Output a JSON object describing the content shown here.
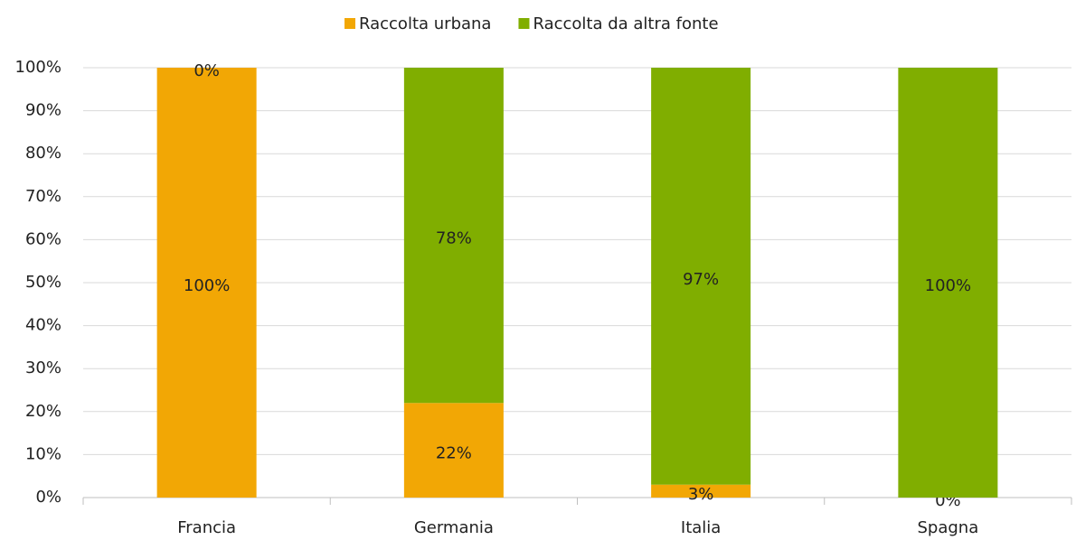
{
  "chart_data": {
    "type": "stacked_bar",
    "categories": [
      "Francia",
      "Germania",
      "Italia",
      "Spagna"
    ],
    "series": [
      {
        "name": "Raccolta urbana",
        "color": "#f2a705",
        "values": [
          100,
          22,
          3,
          0
        ],
        "value_labels": [
          "100%",
          "22%",
          "3%",
          "0%"
        ]
      },
      {
        "name": "Raccolta da altra fonte",
        "color": "#80ae00",
        "values": [
          0,
          78,
          97,
          100
        ],
        "value_labels": [
          "0%",
          "78%",
          "97%",
          "100%"
        ]
      }
    ],
    "ylim": [
      0,
      100
    ],
    "yticks": [
      {
        "value": 0,
        "label": "0%"
      },
      {
        "value": 10,
        "label": "10%"
      },
      {
        "value": 20,
        "label": "20%"
      },
      {
        "value": 30,
        "label": "30%"
      },
      {
        "value": 40,
        "label": "40%"
      },
      {
        "value": 50,
        "label": "50%"
      },
      {
        "value": 60,
        "label": "60%"
      },
      {
        "value": 70,
        "label": "70%"
      },
      {
        "value": 80,
        "label": "80%"
      },
      {
        "value": 90,
        "label": "90%"
      },
      {
        "value": 100,
        "label": "100%"
      }
    ],
    "grid": true,
    "legend": "top"
  }
}
